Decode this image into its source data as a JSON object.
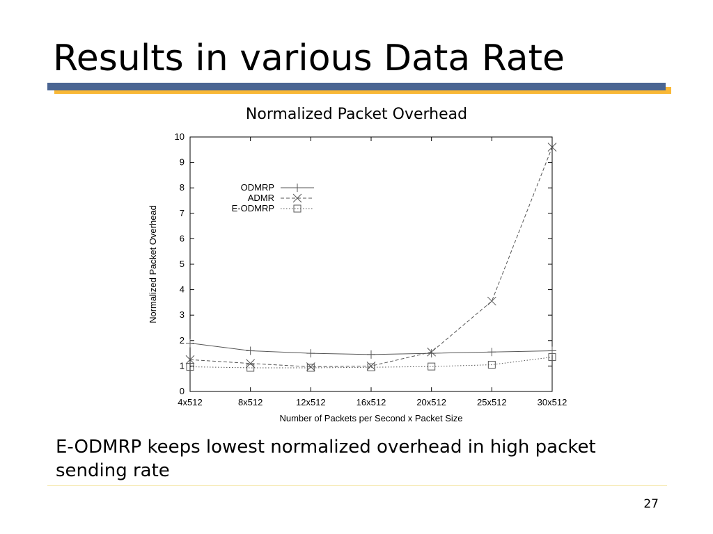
{
  "slide": {
    "title": "Results in various Data Rate",
    "caption": "E-ODMRP keeps lowest normalized overhead in high packet sending rate",
    "page_number": "27",
    "colors": {
      "title_bar": "#4a6592",
      "title_bar_shadow": "#f9b836"
    }
  },
  "chart_heading": "Normalized Packet Overhead",
  "chart_data": {
    "type": "line",
    "title": "",
    "xlabel": "Number of Packets per Second x Packet Size",
    "ylabel": "Normalized Packet Overhead",
    "categories": [
      "4x512",
      "8x512",
      "12x512",
      "16x512",
      "20x512",
      "25x512",
      "30x512"
    ],
    "ylim": [
      0,
      10
    ],
    "yticks": [
      0,
      1,
      2,
      3,
      4,
      5,
      6,
      7,
      8,
      9,
      10
    ],
    "grid": false,
    "legend_position": "top-left",
    "series": [
      {
        "name": "ODMRP",
        "marker": "plus",
        "line": "solid",
        "values": [
          1.9,
          1.6,
          1.5,
          1.45,
          1.5,
          1.55,
          1.6
        ]
      },
      {
        "name": "ADMR",
        "marker": "cross",
        "line": "dashed",
        "values": [
          1.25,
          1.1,
          0.97,
          1.0,
          1.55,
          3.55,
          9.6
        ]
      },
      {
        "name": "E-ODMRP",
        "marker": "square",
        "line": "dotted",
        "values": [
          0.97,
          0.93,
          0.93,
          0.95,
          0.98,
          1.05,
          1.35
        ]
      }
    ]
  }
}
